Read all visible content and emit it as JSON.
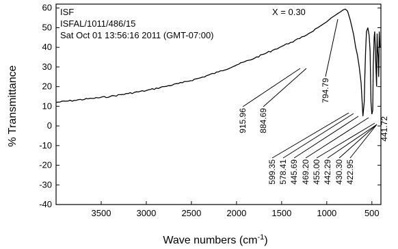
{
  "chart_data": {
    "type": "line",
    "xlabel": "Wave numbers (cm",
    "xlabel_sup": "-1",
    "xlabel_suffix": ")",
    "ylabel": "% Transmittance",
    "xlim": [
      4000,
      400
    ],
    "ylim": [
      -40,
      62
    ],
    "x_reversed": true,
    "grid": false,
    "x_ticks": [
      3500,
      3000,
      2500,
      2000,
      1500,
      1000,
      500
    ],
    "y_ticks": [
      60,
      50,
      40,
      30,
      20,
      10,
      0,
      -10,
      -20,
      -30,
      -40
    ],
    "info_lines": [
      "ISF",
      "ISFAL/1011/486/15",
      "Sat Oct 01 13:56:16 2011 (GMT-07:00)"
    ],
    "x_note": "X = 0.30",
    "series": [
      {
        "x": [
          4000,
          3800,
          3600,
          3400,
          3200,
          3000,
          2800,
          2600,
          2400,
          2200,
          2000,
          1800,
          1600,
          1500,
          1400,
          1300,
          1200,
          1100,
          1000,
          950,
          900,
          850,
          820,
          794.79,
          770,
          740,
          700,
          680,
          660,
          640,
          620,
          610,
          599.35,
          585,
          578.41,
          570,
          560,
          545,
          530,
          520,
          510,
          500,
          490,
          485,
          475,
          469.2,
          462,
          455.0,
          448,
          445.69,
          442.29,
          441.72,
          438,
          430.3,
          425,
          422.95,
          418,
          410
        ],
        "y": [
          12,
          13,
          14,
          15,
          16.5,
          18,
          20,
          22,
          24.5,
          27.5,
          31,
          34.5,
          38.5,
          40.5,
          42.5,
          44.5,
          47,
          50,
          53,
          55,
          56.5,
          58,
          59,
          59.5,
          58.5,
          54,
          46,
          40,
          36,
          30,
          22,
          14,
          5,
          12,
          25,
          38,
          48,
          50,
          46,
          38,
          12,
          6,
          8,
          30,
          45,
          48,
          40,
          30,
          20,
          35,
          45,
          47,
          40,
          35,
          25,
          30,
          48,
          40
        ]
      }
    ],
    "annotations": [
      {
        "label": "915.96",
        "x": 915.96
      },
      {
        "label": "884.69",
        "x": 884.69
      },
      {
        "label": "794.79",
        "x": 794.79
      },
      {
        "label": "599.35",
        "x": 599.35
      },
      {
        "label": "578.41",
        "x": 578.41
      },
      {
        "label": "445.69",
        "x": 445.69
      },
      {
        "label": "469.20",
        "x": 469.2
      },
      {
        "label": "455.00",
        "x": 455.0
      },
      {
        "label": "442.29",
        "x": 442.29
      },
      {
        "label": "430.30",
        "x": 430.3
      },
      {
        "label": "422.95",
        "x": 422.95
      },
      {
        "label": "441.72",
        "x": 441.72
      }
    ]
  }
}
